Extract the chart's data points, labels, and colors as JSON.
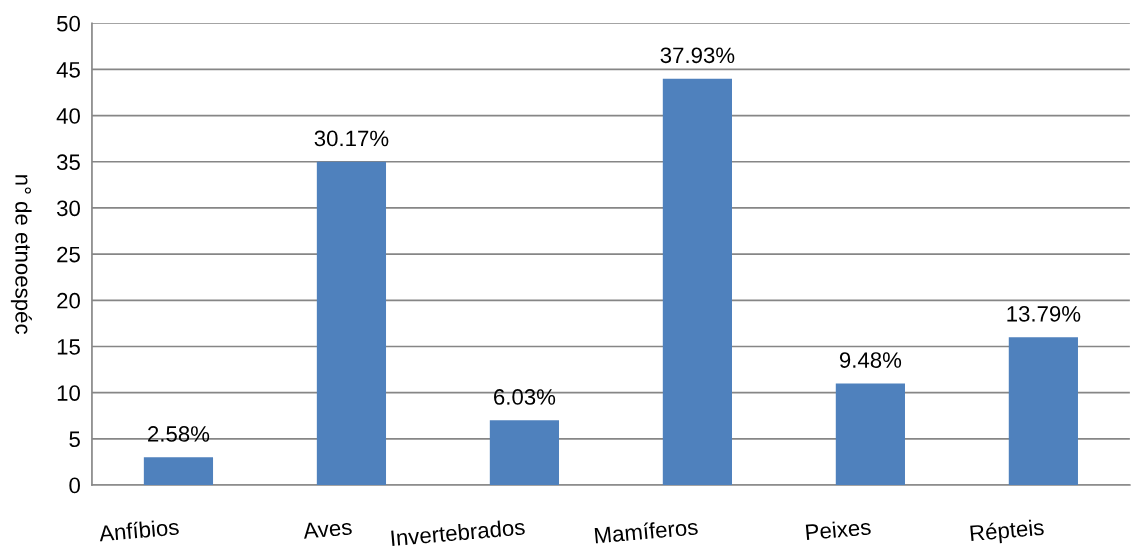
{
  "chart_data": {
    "type": "bar",
    "ylabel": "n° de etnoespéc",
    "categories": [
      "Anfíbios",
      "Aves",
      "Invertebrados",
      "Mamíferos",
      "Peixes",
      "Répteis"
    ],
    "values": [
      3,
      35,
      7,
      44,
      11,
      16
    ],
    "color": "#4f81bd",
    "annotations": [
      "2.58%",
      "30.17%",
      "6.03%",
      "37.93%",
      "9.48%",
      "13.79%"
    ],
    "ylim": [
      0,
      50
    ],
    "yticks": [
      0,
      5,
      10,
      15,
      20,
      25,
      30,
      35,
      40,
      45,
      50
    ],
    "grid": "y"
  }
}
